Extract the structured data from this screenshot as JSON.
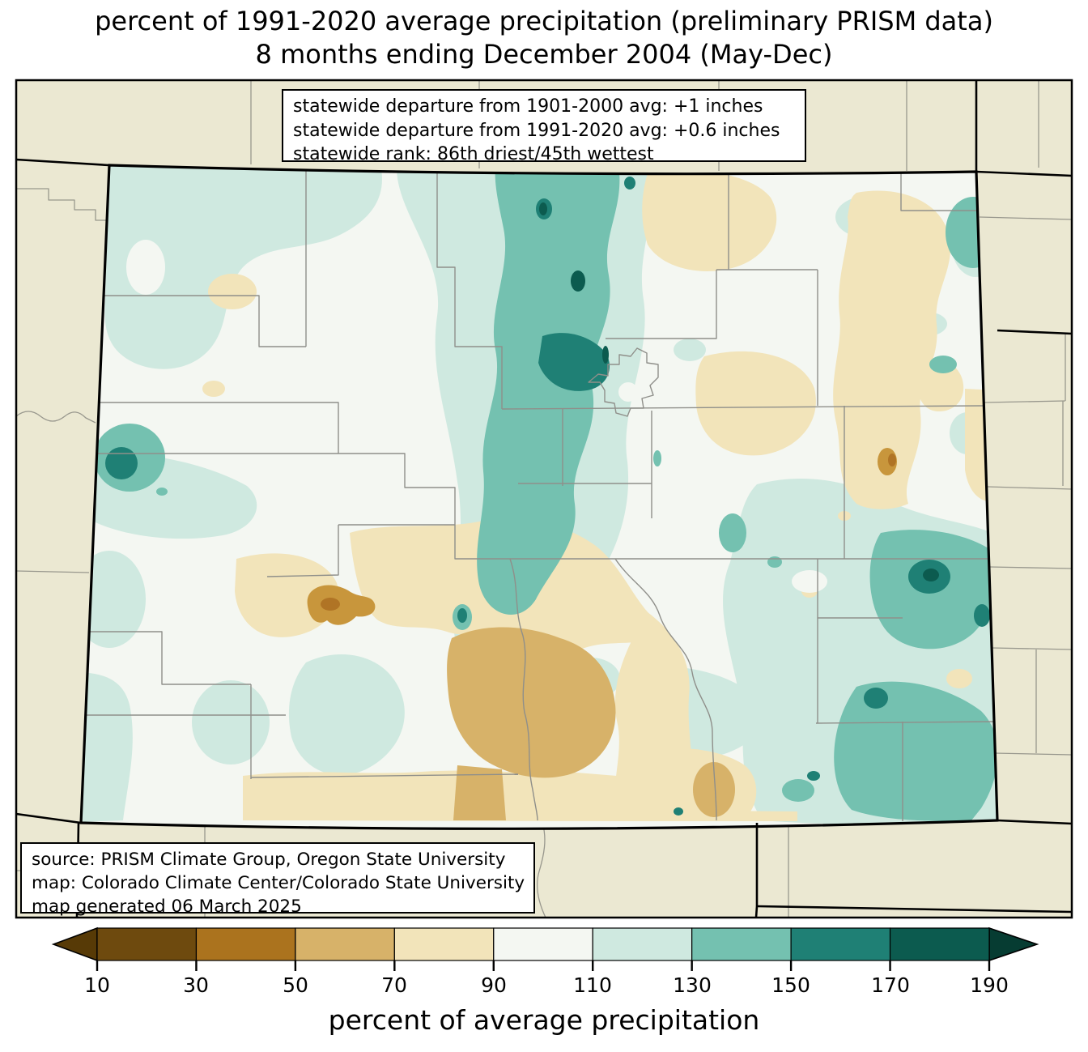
{
  "title": {
    "line1": "percent of 1991-2020 average precipitation (preliminary PRISM data)",
    "line2": "8 months ending December 2004 (May-Dec)"
  },
  "stats_box": {
    "lines": [
      "statewide departure from 1901-2000 avg: +1 inches",
      "statewide departure from 1991-2020 avg: +0.6 inches",
      "statewide rank: 86th driest/45th wettest"
    ]
  },
  "source_box": {
    "lines": [
      "source: PRISM Climate Group, Oregon State University",
      "map: Colorado Climate Center/Colorado State University",
      "map generated 06 March 2025"
    ]
  },
  "colorbar": {
    "caption": "percent of average precipitation",
    "tick_labels": [
      "10",
      "30",
      "50",
      "70",
      "90",
      "110",
      "130",
      "150",
      "170",
      "190"
    ],
    "segment_colors": [
      "#6e4a0e",
      "#ab731e",
      "#d7b269",
      "#f2e4ba",
      "#f4f7f2",
      "#cfe9e0",
      "#74c1b0",
      "#1f8075",
      "#0c5b4f"
    ],
    "under_arrow_color": "#573a06",
    "over_arrow_color": "#063c32"
  },
  "map": {
    "colors": {
      "outside_fill": "#ebe8d2",
      "inside_base": "#f4f7f2",
      "state_border": "#000000",
      "county_line": "#8f8f8a"
    }
  }
}
